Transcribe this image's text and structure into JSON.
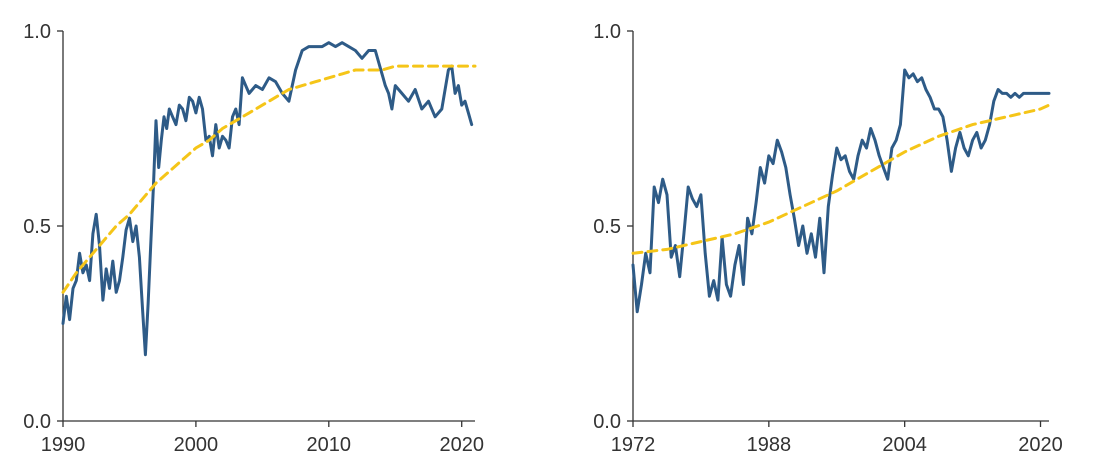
{
  "colors": {
    "series": "#2e5b87",
    "trend": "#f5c518",
    "axis": "#333333"
  },
  "chart_data": [
    {
      "type": "line",
      "title": "",
      "xlabel": "",
      "ylabel": "",
      "xlim": [
        1990,
        2021
      ],
      "ylim": [
        0,
        1
      ],
      "yticks": [
        0,
        0.5,
        1
      ],
      "ytick_labels": [
        "0.0",
        "0.5",
        "1.0"
      ],
      "xticks": [
        1990,
        2000,
        2010,
        2020
      ],
      "xtick_labels": [
        "1990",
        "2000",
        "2010",
        "2020"
      ],
      "grid": false,
      "legend": "none",
      "series": [
        {
          "style": "solid",
          "x": [
            1990.0,
            1990.25,
            1990.5,
            1990.75,
            1991.0,
            1991.25,
            1991.5,
            1991.75,
            1992.0,
            1992.25,
            1992.5,
            1992.75,
            1993.0,
            1993.25,
            1993.5,
            1993.75,
            1994.0,
            1994.25,
            1994.5,
            1994.75,
            1995.0,
            1995.25,
            1995.5,
            1995.75,
            1996.0,
            1996.2,
            1996.4,
            1996.6,
            1996.8,
            1997.0,
            1997.2,
            1997.4,
            1997.6,
            1997.8,
            1998.0,
            1998.25,
            1998.5,
            1998.75,
            1999.0,
            1999.25,
            1999.5,
            1999.75,
            2000.0,
            2000.25,
            2000.5,
            2000.75,
            2001.0,
            2001.25,
            2001.5,
            2001.75,
            2002.0,
            2002.25,
            2002.5,
            2002.75,
            2003.0,
            2003.25,
            2003.5,
            2003.75,
            2004.0,
            2004.5,
            2005.0,
            2005.5,
            2006.0,
            2006.5,
            2007.0,
            2007.5,
            2008.0,
            2008.5,
            2009.0,
            2009.5,
            2010.0,
            2010.5,
            2011.0,
            2011.5,
            2012.0,
            2012.5,
            2013.0,
            2013.5,
            2014.0,
            2014.25,
            2014.5,
            2014.75,
            2015.0,
            2015.5,
            2016.0,
            2016.5,
            2017.0,
            2017.5,
            2018.0,
            2018.5,
            2019.0,
            2019.25,
            2019.5,
            2019.75,
            2020.0,
            2020.25,
            2020.5,
            2020.75
          ],
          "y": [
            0.25,
            0.32,
            0.26,
            0.34,
            0.36,
            0.43,
            0.38,
            0.4,
            0.36,
            0.48,
            0.53,
            0.45,
            0.31,
            0.39,
            0.34,
            0.41,
            0.33,
            0.36,
            0.42,
            0.49,
            0.52,
            0.46,
            0.5,
            0.42,
            0.28,
            0.17,
            0.3,
            0.45,
            0.6,
            0.77,
            0.65,
            0.72,
            0.78,
            0.75,
            0.8,
            0.78,
            0.76,
            0.81,
            0.8,
            0.77,
            0.83,
            0.82,
            0.79,
            0.83,
            0.8,
            0.72,
            0.73,
            0.68,
            0.76,
            0.7,
            0.73,
            0.72,
            0.7,
            0.78,
            0.8,
            0.76,
            0.88,
            0.86,
            0.84,
            0.86,
            0.85,
            0.88,
            0.87,
            0.84,
            0.82,
            0.9,
            0.95,
            0.96,
            0.96,
            0.96,
            0.97,
            0.96,
            0.97,
            0.96,
            0.95,
            0.93,
            0.95,
            0.95,
            0.89,
            0.86,
            0.84,
            0.8,
            0.86,
            0.84,
            0.82,
            0.85,
            0.8,
            0.82,
            0.78,
            0.8,
            0.9,
            0.91,
            0.84,
            0.86,
            0.81,
            0.82,
            0.79,
            0.76
          ]
        },
        {
          "style": "dashed",
          "x": [
            1990,
            1991,
            1992,
            1993,
            1994,
            1995,
            1996,
            1997,
            1998,
            1999,
            2000,
            2001,
            2002,
            2003,
            2004,
            2005,
            2006,
            2007,
            2008,
            2009,
            2010,
            2011,
            2012,
            2013,
            2014,
            2015,
            2016,
            2017,
            2018,
            2019,
            2020,
            2021
          ],
          "y": [
            0.33,
            0.38,
            0.42,
            0.46,
            0.5,
            0.53,
            0.57,
            0.61,
            0.64,
            0.67,
            0.7,
            0.72,
            0.75,
            0.77,
            0.79,
            0.81,
            0.83,
            0.85,
            0.86,
            0.87,
            0.88,
            0.89,
            0.9,
            0.9,
            0.9,
            0.91,
            0.91,
            0.91,
            0.91,
            0.91,
            0.91,
            0.91
          ]
        }
      ]
    },
    {
      "type": "line",
      "title": "",
      "xlabel": "",
      "ylabel": "",
      "xlim": [
        1972,
        2021
      ],
      "ylim": [
        0,
        1
      ],
      "yticks": [
        0,
        0.5,
        1
      ],
      "ytick_labels": [
        "0.0",
        "0.5",
        "1.0"
      ],
      "xticks": [
        1972,
        1988,
        2004,
        2020
      ],
      "xtick_labels": [
        "1972",
        "1988",
        "2004",
        "2020"
      ],
      "grid": false,
      "legend": "none",
      "series": [
        {
          "style": "solid",
          "x": [
            1972.0,
            1972.5,
            1973.0,
            1973.5,
            1974.0,
            1974.5,
            1975.0,
            1975.5,
            1976.0,
            1976.5,
            1977.0,
            1977.5,
            1978.0,
            1978.5,
            1979.0,
            1979.5,
            1980.0,
            1980.5,
            1981.0,
            1981.5,
            1982.0,
            1982.5,
            1983.0,
            1983.5,
            1984.0,
            1984.5,
            1985.0,
            1985.5,
            1986.0,
            1986.5,
            1987.0,
            1987.5,
            1988.0,
            1988.5,
            1989.0,
            1989.5,
            1990.0,
            1990.5,
            1991.0,
            1991.5,
            1992.0,
            1992.5,
            1993.0,
            1993.5,
            1994.0,
            1994.5,
            1995.0,
            1995.5,
            1996.0,
            1996.5,
            1997.0,
            1997.5,
            1998.0,
            1998.5,
            1999.0,
            1999.5,
            2000.0,
            2000.5,
            2001.0,
            2001.5,
            2002.0,
            2002.5,
            2003.0,
            2003.5,
            2004.0,
            2004.5,
            2005.0,
            2005.5,
            2006.0,
            2006.5,
            2007.0,
            2007.5,
            2008.0,
            2008.5,
            2009.0,
            2009.5,
            2010.0,
            2010.5,
            2011.0,
            2011.5,
            2012.0,
            2012.5,
            2013.0,
            2013.5,
            2014.0,
            2014.5,
            2015.0,
            2015.5,
            2016.0,
            2016.5,
            2017.0,
            2017.5,
            2018.0,
            2018.5,
            2019.0,
            2019.5,
            2020.0,
            2020.5,
            2021.0
          ],
          "y": [
            0.4,
            0.28,
            0.35,
            0.43,
            0.38,
            0.6,
            0.56,
            0.62,
            0.58,
            0.42,
            0.45,
            0.37,
            0.48,
            0.6,
            0.57,
            0.55,
            0.58,
            0.43,
            0.32,
            0.36,
            0.31,
            0.47,
            0.35,
            0.32,
            0.4,
            0.45,
            0.35,
            0.52,
            0.48,
            0.56,
            0.65,
            0.61,
            0.68,
            0.66,
            0.72,
            0.69,
            0.65,
            0.58,
            0.52,
            0.45,
            0.5,
            0.43,
            0.48,
            0.42,
            0.52,
            0.38,
            0.55,
            0.63,
            0.7,
            0.67,
            0.68,
            0.64,
            0.62,
            0.68,
            0.72,
            0.7,
            0.75,
            0.72,
            0.68,
            0.65,
            0.62,
            0.7,
            0.72,
            0.76,
            0.9,
            0.88,
            0.89,
            0.87,
            0.88,
            0.85,
            0.83,
            0.8,
            0.8,
            0.78,
            0.72,
            0.64,
            0.7,
            0.74,
            0.7,
            0.68,
            0.72,
            0.74,
            0.7,
            0.72,
            0.76,
            0.82,
            0.85,
            0.84,
            0.84,
            0.83,
            0.84,
            0.83,
            0.84,
            0.84,
            0.84,
            0.84,
            0.84,
            0.84,
            0.84
          ]
        },
        {
          "style": "dashed",
          "x": [
            1972,
            1976,
            1980,
            1984,
            1988,
            1992,
            1996,
            2000,
            2004,
            2008,
            2012,
            2016,
            2020,
            2021
          ],
          "y": [
            0.43,
            0.44,
            0.46,
            0.48,
            0.51,
            0.55,
            0.59,
            0.64,
            0.69,
            0.73,
            0.76,
            0.78,
            0.8,
            0.81
          ]
        }
      ]
    }
  ]
}
